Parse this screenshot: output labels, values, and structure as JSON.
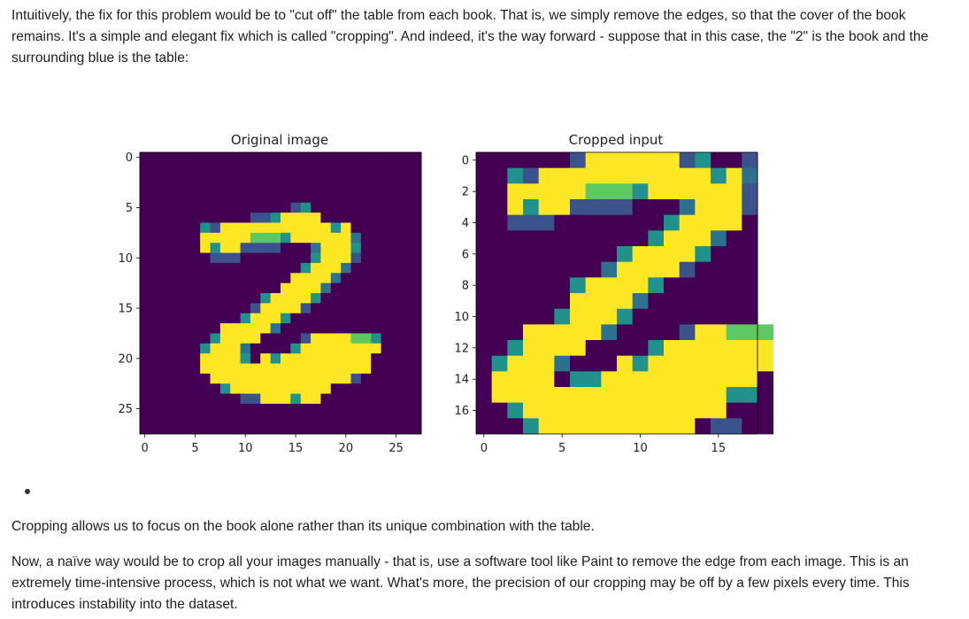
{
  "text": {
    "intro": "Intuitively, the fix for this problem would be to \"cut off\" the table from each book. That is, we simply remove the edges, so that the cover of the book remains. It's a simple and elegant fix which is called \"cropping\". And indeed, it's the way forward - suppose that in this case, the \"2\" is the book and the surrounding blue is the table:",
    "after": "Cropping allows us to focus on the book alone rather than its unique combination with the table.",
    "naive": "Now, a naïve way would be to crop all your images manually - that is, use a software tool like Paint to remove the edge from each image. This is an extremely time-intensive process, which is not what we want. What's more, the precision of our cropping may be off by a few pixels every time. This introduces instability into the dataset."
  },
  "colors": {
    "bg": "#440154",
    "low": "#3b528b",
    "mid": "#21918c",
    "midhi": "#5ec962",
    "hi": "#fde725"
  },
  "chart_data": [
    {
      "type": "heatmap",
      "title": "Original image",
      "xticks": [
        "0",
        "5",
        "10",
        "15",
        "20",
        "25"
      ],
      "yticks": [
        "0",
        "5",
        "10",
        "15",
        "20",
        "25"
      ],
      "xlim": [
        -0.5,
        27.5
      ],
      "ylim": [
        27.5,
        -0.5
      ],
      "rows": [
        "............................",
        "............................",
        "............................",
        "............................",
        "............................",
        "...............ac...........",
        "...........aacdddd..........",
        "......cadddddddddddcd.......",
        "......dddddeeecddddddb......",
        "......dcddaaaa...bdddc......",
        ".......aaa.......cddda......",
        "................cdddb.......",
        "...............ddddb........",
        "..............ddddb.........",
        "............cddddc..........",
        "...........adddda...........",
        "..........cdddc.............",
        "........dddddb..............",
        ".......cdddd....addddeec....",
        "......cdddb....cdddddddd....",
        "......ddddc.dcddddddddd.....",
        "......ddddddddddddddddd.....",
        ".......dddddddddddddda......",
        "........cdddddddddd.........",
        "..........aadddcdd..........",
        "............................",
        "............................",
        "............................"
      ]
    },
    {
      "type": "heatmap",
      "title": "Cropped input",
      "xticks": [
        "0",
        "5",
        "10",
        "15"
      ],
      "yticks": [
        "0",
        "2",
        "4",
        "6",
        "8",
        "10",
        "12",
        "14",
        "16"
      ],
      "xlim": [
        -0.5,
        17.5
      ],
      "ylim": [
        17.5,
        -0.5
      ],
      "rows": [
        "......addddddac..a",
        "..cadddddddddddcdb",
        "..dddddeeecdddddda",
        "..dcddaaaa...bddda",
        "..aaa.......cdddd.",
        "...........cdddb..",
        ".........cddddc...",
        "........bdddda....",
        "......cddddc......",
        "......ddddb.......",
        ".....cdddc........",
        "...dddddb....addeee",
        "..cdddd....cddddddd",
        ".cdddb...dcdddddddd",
        ".dddd.ccdddddddddd.",
        ".dddddddddddddddcc.",
        "..cddddddddddddd...",
        "...cdddddddddd.aa.."
      ]
    }
  ]
}
